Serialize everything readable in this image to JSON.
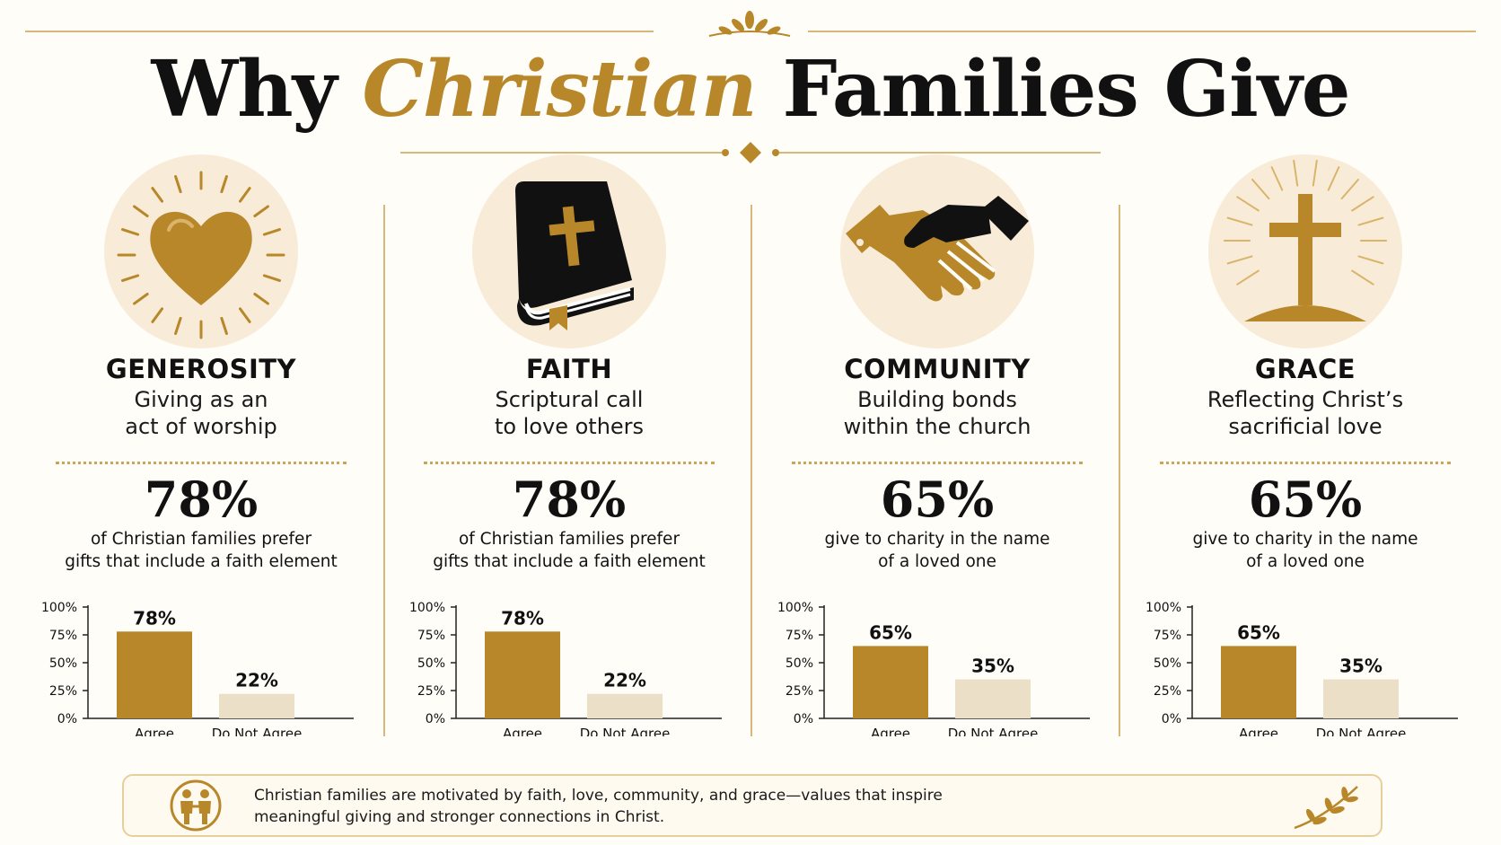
{
  "title": {
    "part1": "Why",
    "accent": "Christian",
    "part2": "Families Give"
  },
  "colors": {
    "gold": "#b8872a",
    "beige": "#ecdfc8",
    "circle": "#f8ecd8",
    "text": "#111111"
  },
  "panels": [
    {
      "icon": "radiant-heart-icon",
      "heading": "GENEROSITY",
      "subtitle": "Giving as an\nact of worship",
      "stat": "78%",
      "stat_desc": "of Christian families prefer\ngifts that include a faith element"
    },
    {
      "icon": "bible-icon",
      "heading": "FAITH",
      "subtitle": "Scriptural call\nto love others",
      "stat": "78%",
      "stat_desc": "of Christian families prefer\ngifts that include a faith element"
    },
    {
      "icon": "handshake-icon",
      "heading": "COMMUNITY",
      "subtitle": "Building bonds\nwithin the church",
      "stat": "65%",
      "stat_desc": "give to charity in the name\nof a loved one"
    },
    {
      "icon": "radiant-cross-icon",
      "heading": "GRACE",
      "subtitle": "Reflecting Christ’s\nsacrificial love",
      "stat": "65%",
      "stat_desc": "give to charity in the name\nof a loved one"
    }
  ],
  "chart_data": [
    {
      "type": "bar",
      "categories": [
        "Agree",
        "Do Not Agree"
      ],
      "values": [
        78,
        22
      ],
      "value_labels": [
        "78%",
        "22%"
      ],
      "ylim": [
        0,
        100
      ],
      "yticks": [
        "0%",
        "25%",
        "50%",
        "75%",
        "100%"
      ],
      "colors": [
        "#b8872a",
        "#ecdfc8"
      ]
    },
    {
      "type": "bar",
      "categories": [
        "Agree",
        "Do Not Agree"
      ],
      "values": [
        78,
        22
      ],
      "value_labels": [
        "78%",
        "22%"
      ],
      "ylim": [
        0,
        100
      ],
      "yticks": [
        "0%",
        "25%",
        "50%",
        "75%",
        "100%"
      ],
      "colors": [
        "#b8872a",
        "#ecdfc8"
      ]
    },
    {
      "type": "bar",
      "categories": [
        "Agree",
        "Do Not Agree"
      ],
      "values": [
        65,
        35
      ],
      "value_labels": [
        "65%",
        "35%"
      ],
      "ylim": [
        0,
        100
      ],
      "yticks": [
        "0%",
        "25%",
        "50%",
        "75%",
        "100%"
      ],
      "colors": [
        "#b8872a",
        "#ecdfc8"
      ]
    },
    {
      "type": "bar",
      "categories": [
        "Agree",
        "Do Not Agree"
      ],
      "values": [
        65,
        35
      ],
      "value_labels": [
        "65%",
        "35%"
      ],
      "ylim": [
        0,
        100
      ],
      "yticks": [
        "0%",
        "25%",
        "50%",
        "75%",
        "100%"
      ],
      "colors": [
        "#b8872a",
        "#ecdfc8"
      ]
    }
  ],
  "footer": {
    "icon": "family-icon",
    "text": "Christian families are motivated by faith, love, community, and grace—values that inspire\nmeaningful giving and stronger connections in Christ.",
    "decoration": "laurel-branch-icon"
  }
}
